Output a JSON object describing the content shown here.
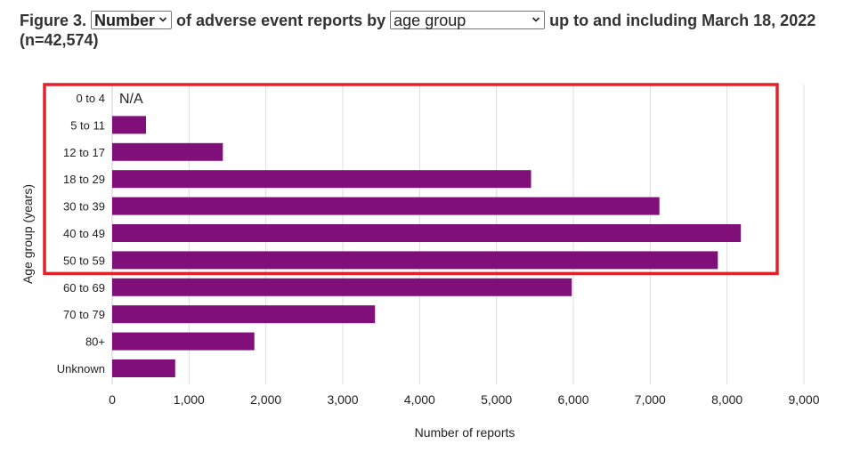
{
  "title": {
    "prefix": "Figure 3.",
    "metric_select": "Number",
    "middle": "of adverse event reports by",
    "group_select": "age group",
    "suffix": "up to and including March 18, 2022",
    "count": "(n=42,574)"
  },
  "colors": {
    "bar": "#800f7a",
    "grid": "#dddddd",
    "highlight": "#e3212b"
  },
  "chart_data": {
    "type": "bar",
    "orientation": "horizontal",
    "categories": [
      "0 to 4",
      "5 to 11",
      "12 to 17",
      "18 to 29",
      "30 to 39",
      "40 to 49",
      "50 to 59",
      "60 to 69",
      "70 to 79",
      "80+",
      "Unknown"
    ],
    "values": [
      null,
      440,
      1440,
      5450,
      7120,
      8180,
      7880,
      5980,
      3420,
      1850,
      820
    ],
    "value_labels": [
      "N/A",
      "",
      "",
      "",
      "",
      "",
      "",
      "",
      "",
      "",
      ""
    ],
    "xlabel": "Number of reports",
    "ylabel": "Age group (years)",
    "xlim": [
      0,
      9000
    ],
    "xticks": [
      0,
      1000,
      2000,
      3000,
      4000,
      5000,
      6000,
      7000,
      8000,
      9000
    ],
    "xtick_labels": [
      "0",
      "1,000",
      "2,000",
      "3,000",
      "4,000",
      "5,000",
      "6,000",
      "7,000",
      "8,000",
      "9,000"
    ],
    "grid": "vertical",
    "highlight_categories": [
      "0 to 4",
      "5 to 11",
      "12 to 17",
      "18 to 29",
      "30 to 39",
      "40 to 49",
      "50 to 59"
    ]
  }
}
